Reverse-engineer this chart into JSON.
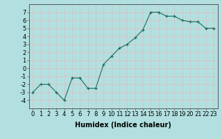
{
  "x": [
    0,
    1,
    2,
    3,
    4,
    5,
    6,
    7,
    8,
    9,
    10,
    11,
    12,
    13,
    14,
    15,
    16,
    17,
    18,
    19,
    20,
    21,
    22,
    23
  ],
  "y": [
    -3,
    -2,
    -2,
    -3,
    -4,
    -1.2,
    -1.2,
    -2.5,
    -2.5,
    0.5,
    1.5,
    2.5,
    3.0,
    3.8,
    4.8,
    7.0,
    7.0,
    6.5,
    6.5,
    6.0,
    5.8,
    5.8,
    5.0,
    5.0
  ],
  "line_color": "#1a6b5a",
  "marker": "+",
  "bg_color": "#b2e0e0",
  "grid_color": "#e8b8b8",
  "xlabel": "Humidex (Indice chaleur)",
  "xlabel_fontsize": 7,
  "tick_fontsize": 6,
  "ylim": [
    -5,
    8
  ],
  "yticks": [
    -4,
    -3,
    -2,
    -1,
    0,
    1,
    2,
    3,
    4,
    5,
    6,
    7
  ],
  "xticks": [
    0,
    1,
    2,
    3,
    4,
    5,
    6,
    7,
    8,
    9,
    10,
    11,
    12,
    13,
    14,
    15,
    16,
    17,
    18,
    19,
    20,
    21,
    22,
    23
  ]
}
